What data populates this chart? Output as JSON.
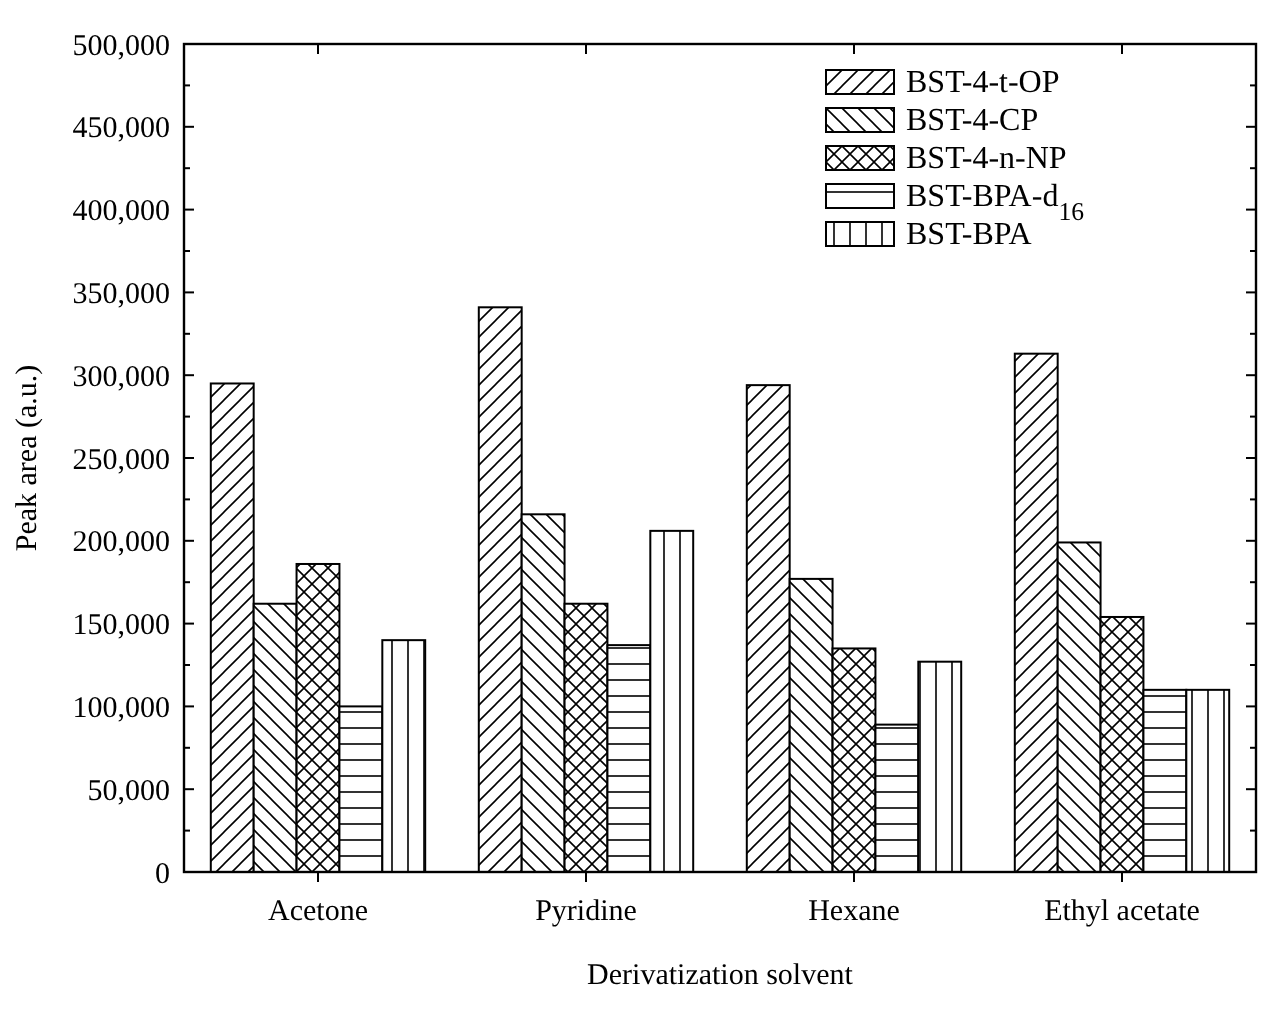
{
  "chart_data": {
    "type": "bar",
    "xlabel": "Derivatization solvent",
    "ylabel": "Peak area (a.u.)",
    "categories": [
      "Acetone",
      "Pyridine",
      "Hexane",
      "Ethyl acetate"
    ],
    "series": [
      {
        "name": "BST-4-t-OP",
        "color": "#000000",
        "values": [
          295000,
          341000,
          294000,
          313000
        ]
      },
      {
        "name": "BST-4-CP",
        "color": "#000000",
        "values": [
          162000,
          216000,
          177000,
          199000
        ]
      },
      {
        "name": "BST-4-n-NP",
        "color": "#000000",
        "values": [
          186000,
          162000,
          135000,
          154000
        ]
      },
      {
        "name": "BST-BPA-d$_{16}$",
        "color": "#000000",
        "values": [
          100000,
          137000,
          89000,
          110000
        ]
      },
      {
        "name": "BST-BPA",
        "color": "#000000",
        "values": [
          140000,
          206000,
          127000,
          110000
        ]
      }
    ],
    "ylim": [
      0,
      500000
    ],
    "yticks": [
      0,
      {
        "value": 50000,
        "label": "50,000"
      },
      {
        "value": 100000,
        "label": "100,000"
      },
      {
        "value": 150000,
        "label": "150,000"
      },
      {
        "value": 200000,
        "label": "200,000"
      },
      {
        "value": 250000,
        "label": "250,000"
      },
      {
        "value": 300000,
        "label": "300,000"
      },
      {
        "value": 350000,
        "label": "350,000"
      },
      {
        "value": 400000,
        "label": "400,000"
      },
      {
        "value": 450000,
        "label": "450,000"
      },
      {
        "value": 500000,
        "label": "500,000"
      }
    ],
    "legend": "top right",
    "grid": false
  }
}
